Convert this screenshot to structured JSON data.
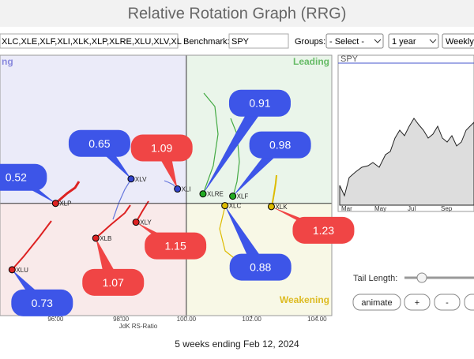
{
  "header": {
    "title": "Relative Rotation Graph (RRG)"
  },
  "controls": {
    "symbols": "XLC,XLE,XLF,XLI,XLK,XLP,XLRE,XLU,XLV,XL",
    "benchmark_label": "Benchmark:",
    "benchmark": "SPY",
    "groups_label": "Groups:",
    "groups": "- Select -",
    "period": "1 year",
    "frequency": "Weekly"
  },
  "rrg": {
    "quadrants": {
      "improving": "ng",
      "leading": "Leading",
      "weakening": "Weakening"
    },
    "x_label": "JdK RS-Ratio",
    "xlim": [
      94.3,
      104.45
    ],
    "ylim": [
      96.55,
      104.55
    ],
    "xticks": [
      {
        "value": 96,
        "label": "96.00"
      },
      {
        "value": 98,
        "label": "98.00"
      },
      {
        "value": 100,
        "label": "100.00"
      },
      {
        "value": 102,
        "label": "102.00"
      },
      {
        "value": 104,
        "label": "104.00"
      }
    ],
    "points": [
      {
        "name": "XLV",
        "x": 98.31,
        "y": 100.75,
        "color": "#3344cc",
        "callout": "0.65",
        "callout_color": "#3d55e8"
      },
      {
        "name": "XLI",
        "x": 99.73,
        "y": 100.44,
        "color": "#3344cc",
        "callout": "1.09",
        "callout_color": "#f04545"
      },
      {
        "name": "XLRE",
        "x": 100.51,
        "y": 100.29,
        "color": "#22aa22",
        "callout": "0.91",
        "callout_color": "#3d55e8"
      },
      {
        "name": "XLF",
        "x": 101.42,
        "y": 100.22,
        "color": "#22aa22",
        "callout": "0.98",
        "callout_color": "#3d55e8"
      },
      {
        "name": "XLP",
        "x": 96.0,
        "y": 100.0,
        "color": "#dd2222",
        "callout": "0.52",
        "callout_color": "#3d55e8"
      },
      {
        "name": "XLY",
        "x": 98.46,
        "y": 99.42,
        "color": "#dd2222",
        "callout": "1.15",
        "callout_color": "#f04545"
      },
      {
        "name": "XLB",
        "x": 97.23,
        "y": 98.93,
        "color": "#dd2222",
        "callout": "1.07",
        "callout_color": "#f04545"
      },
      {
        "name": "XLU",
        "x": 94.67,
        "y": 97.96,
        "color": "#dd2222",
        "callout": "0.73",
        "callout_color": "#3d55e8"
      },
      {
        "name": "XLC",
        "x": 101.18,
        "y": 99.93,
        "color": "#ddbb00",
        "callout": "0.88",
        "callout_color": "#3d55e8"
      },
      {
        "name": "XLK",
        "x": 102.6,
        "y": 99.9,
        "color": "#ddbb00",
        "callout": "1.23",
        "callout_color": "#f04545"
      }
    ]
  },
  "benchmark_chart": {
    "title": "SPY",
    "months": [
      "Mar",
      "May",
      "Jul",
      "Sep",
      "N"
    ]
  },
  "tail": {
    "label": "Tail Length:"
  },
  "buttons": [
    "animate",
    "+",
    "-",
    "f"
  ],
  "footer": {
    "caption": "5 weeks ending Feb 12, 2024"
  }
}
